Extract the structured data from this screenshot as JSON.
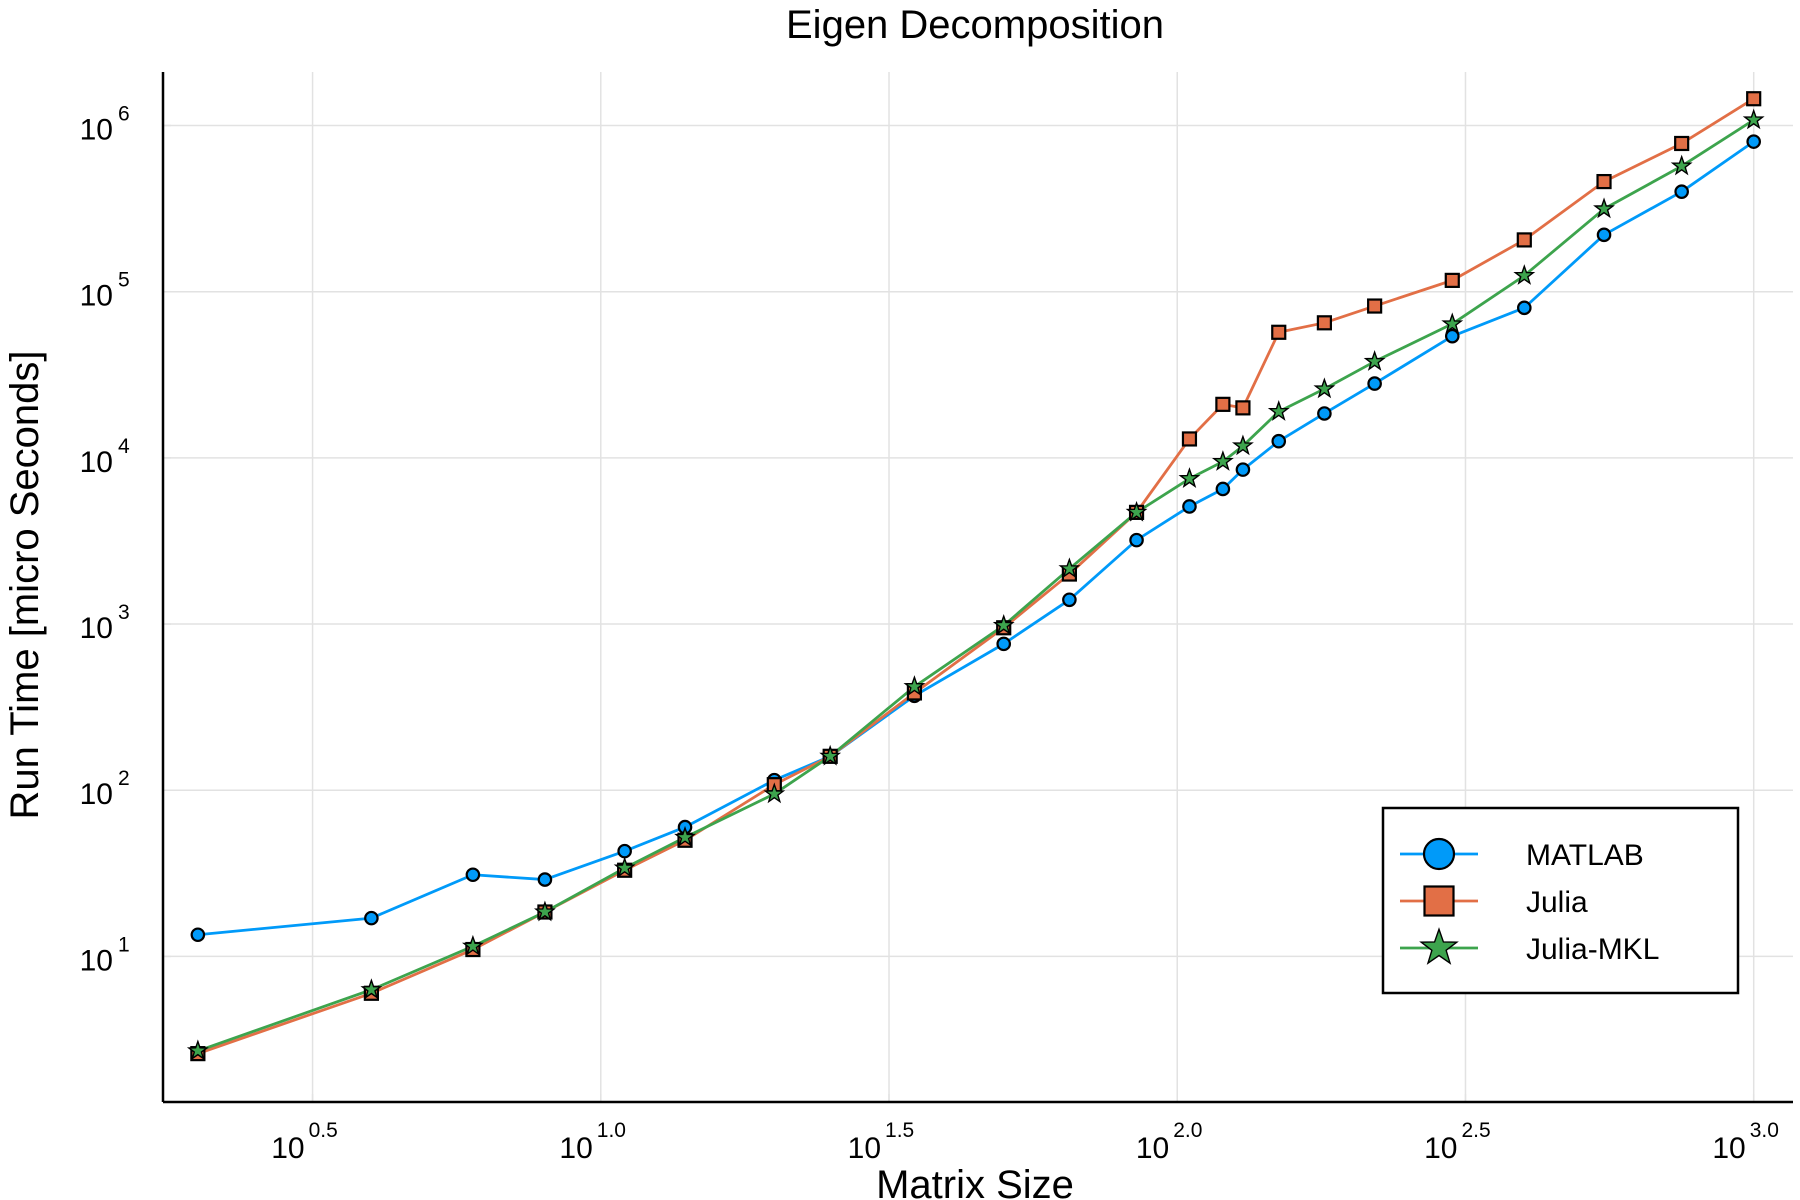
{
  "chart_data": {
    "type": "line",
    "title": "Eigen Decomposition",
    "xlabel": "Matrix Size",
    "ylabel": "Run Time  [micro Seconds]",
    "x_scale": "log10",
    "y_scale": "log10",
    "xlim": [
      1.74,
      1170
    ],
    "ylim": [
      1.33,
      2100000
    ],
    "grid": true,
    "legend_position": "bottom-right",
    "x_ticks": [
      {
        "base": "10",
        "exp": "0.5",
        "value": 3.1623
      },
      {
        "base": "10",
        "exp": "1.0",
        "value": 10
      },
      {
        "base": "10",
        "exp": "1.5",
        "value": 31.623
      },
      {
        "base": "10",
        "exp": "2.0",
        "value": 100
      },
      {
        "base": "10",
        "exp": "2.5",
        "value": 316.23
      },
      {
        "base": "10",
        "exp": "3.0",
        "value": 1000
      }
    ],
    "y_ticks": [
      {
        "base": "10",
        "exp": "1",
        "value": 10
      },
      {
        "base": "10",
        "exp": "2",
        "value": 100
      },
      {
        "base": "10",
        "exp": "3",
        "value": 1000
      },
      {
        "base": "10",
        "exp": "4",
        "value": 10000
      },
      {
        "base": "10",
        "exp": "5",
        "value": 100000
      },
      {
        "base": "10",
        "exp": "6",
        "value": 1000000
      }
    ],
    "x": [
      2,
      4,
      6,
      8,
      11,
      14,
      20,
      25,
      35,
      50,
      65,
      85,
      105,
      120,
      130,
      150,
      180,
      220,
      300,
      400,
      550,
      750,
      1000
    ],
    "series": [
      {
        "name": "MATLAB",
        "color": "#009af9",
        "marker": "circle",
        "values": [
          13.5,
          17,
          31,
          29,
          43,
          60,
          115,
          160,
          370,
          760,
          1400,
          3200,
          5100,
          6500,
          8500,
          12600,
          18500,
          28000,
          54000,
          80000,
          220000,
          400000,
          800000
        ]
      },
      {
        "name": "Julia",
        "color": "#e26f46",
        "marker": "square",
        "values": [
          2.6,
          6,
          11,
          18.5,
          33,
          50,
          108,
          160,
          385,
          950,
          2000,
          4700,
          13000,
          21000,
          20000,
          57000,
          65000,
          82000,
          117000,
          205000,
          460000,
          780000,
          1450000
        ]
      },
      {
        "name": "Julia-MKL",
        "color": "#3da44d",
        "marker": "star",
        "values": [
          2.7,
          6.3,
          11.5,
          18.5,
          34,
          52,
          95,
          160,
          420,
          980,
          2150,
          4700,
          7500,
          9500,
          11800,
          19000,
          26000,
          38000,
          64000,
          125000,
          315000,
          570000,
          1080000
        ]
      }
    ]
  }
}
